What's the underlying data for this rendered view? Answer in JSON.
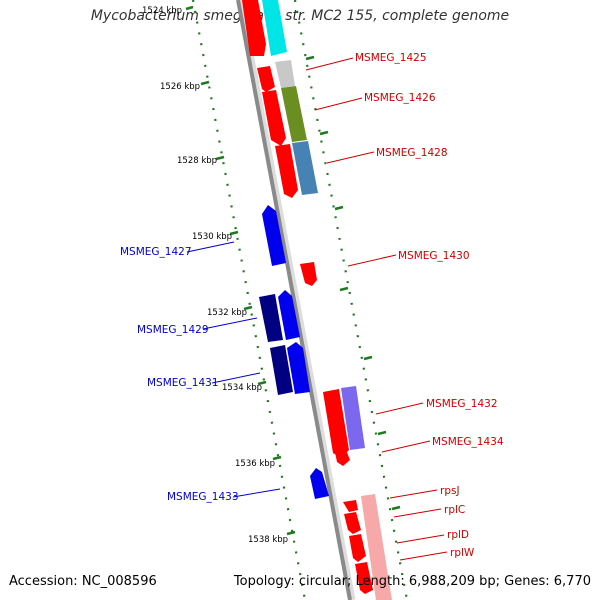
{
  "title": "Mycobacterium smegmatis str. MC2 155, complete genome",
  "footer": {
    "accession": "Accession: NC_008596",
    "topology": "Topology: circular; Length: 6,988,209 bp; Genes: 6,770"
  },
  "colors": {
    "backbone": "#8a8a8a",
    "ticks": "#1f7a1f",
    "forward_label": "#cc0000",
    "reverse_label": "#0000cc"
  },
  "ruler": [
    {
      "kbp": 1524,
      "label": "1524 kbp"
    },
    {
      "kbp": 1526,
      "label": "1526 kbp"
    },
    {
      "kbp": 1528,
      "label": "1528 kbp"
    },
    {
      "kbp": 1530,
      "label": "1530 kbp"
    },
    {
      "kbp": 1532,
      "label": "1532 kbp"
    },
    {
      "kbp": 1534,
      "label": "1534 kbp"
    },
    {
      "kbp": 1536,
      "label": "1536 kbp"
    },
    {
      "kbp": 1538,
      "label": "1538 kbp"
    }
  ],
  "forward_genes": [
    {
      "label": "MSMEG_1425"
    },
    {
      "label": "MSMEG_1426"
    },
    {
      "label": "MSMEG_1428"
    },
    {
      "label": "MSMEG_1430"
    },
    {
      "label": "MSMEG_1432"
    },
    {
      "label": "MSMEG_1434"
    },
    {
      "label": "rpsJ"
    },
    {
      "label": "rplC"
    },
    {
      "label": "rplD"
    },
    {
      "label": "rplW"
    }
  ],
  "reverse_genes": [
    {
      "label": "MSMEG_1427"
    },
    {
      "label": "MSMEG_1429"
    },
    {
      "label": "MSMEG_1431"
    },
    {
      "label": "MSMEG_1433"
    }
  ]
}
